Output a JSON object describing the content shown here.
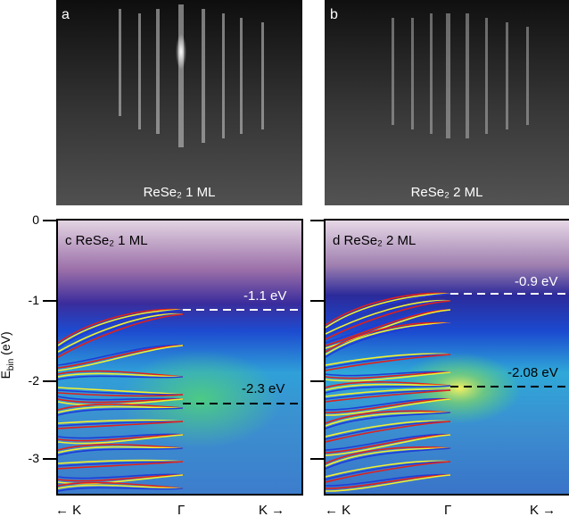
{
  "panels": {
    "a": {
      "letter": "a",
      "caption": "ReSe₂ 1 ML"
    },
    "b": {
      "letter": "b",
      "caption": "ReSe₂ 2 ML"
    },
    "c": {
      "letter": "c",
      "title": "ReSe₂ 1 ML",
      "ann_top": "-1.1 eV",
      "ann_mid": "-2.3 eV"
    },
    "d": {
      "letter": "d",
      "title": "ReSe₂ 2 ML",
      "ann_top": "-0.9 eV",
      "ann_mid": "-2.08 eV"
    }
  },
  "yaxis": {
    "label": "E",
    "label_sub": "bin",
    "label_unit": " (eV)",
    "ticks": [
      "0",
      "-1",
      "-2",
      "-3"
    ]
  },
  "xaxis": {
    "left": "← K",
    "center": "Γ",
    "right": "K →",
    "left2": "← K",
    "center2": "Γ",
    "right2": "K →"
  },
  "colors": {
    "band_red": "#e0201c",
    "band_yellow": "#f2f030",
    "band_blue": "#1e3cd8"
  }
}
